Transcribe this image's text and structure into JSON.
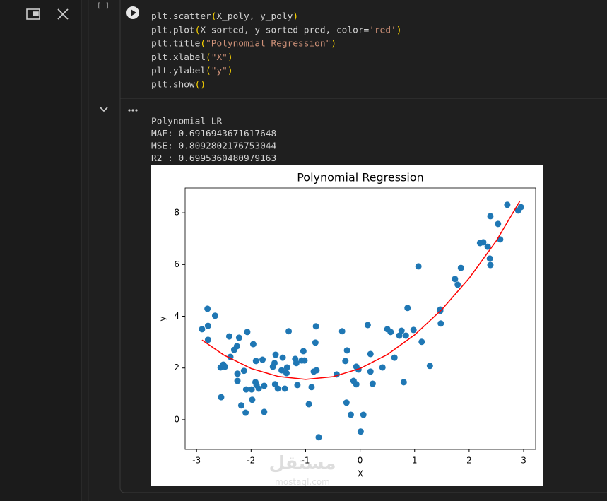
{
  "cell_marker": "[ ]",
  "code": [
    "plt.scatter(X_poly, y_poly)",
    "plt.plot(X_sorted, y_sorted_pred, color='red')",
    "plt.title(\"Polynomial Regression\")",
    "plt.xlabel(\"X\")",
    "plt.ylabel(\"y\")",
    "plt.show()"
  ],
  "output": [
    "Polynomial LR",
    "MAE: 0.6916943671617648",
    "MSE: 0.8092802176753044",
    "R2 : 0.6995360480979163"
  ],
  "watermark": [
    "مستقل",
    "mostaql.com"
  ],
  "chart_data": {
    "type": "scatter",
    "title": "Polynomial Regression",
    "xlabel": "X",
    "ylabel": "y",
    "xlim": [
      -3.21,
      3.22
    ],
    "ylim": [
      -1.15,
      8.96
    ],
    "xticks": [
      -3,
      -2,
      -1,
      0,
      1,
      2,
      3
    ],
    "yticks": [
      0,
      2,
      4,
      6,
      8
    ],
    "series": [
      {
        "type": "scatter",
        "color": "#1f77b4",
        "x": [
          -2.9,
          -2.8,
          -2.79,
          -2.79,
          -2.66,
          -2.56,
          -2.51,
          -2.48,
          -2.55,
          -2.4,
          -2.38,
          -2.31,
          -2.26,
          -2.25,
          -2.25,
          -2.22,
          -2.18,
          -2.13,
          -2.1,
          -2.07,
          -2.09,
          -1.99,
          -1.96,
          -1.98,
          -1.92,
          -1.91,
          -1.9,
          -1.86,
          -1.79,
          -1.76,
          -1.76,
          -1.6,
          -1.57,
          -1.56,
          -1.55,
          -1.51,
          -1.44,
          -1.42,
          -1.38,
          -1.35,
          -1.34,
          -1.31,
          -1.17,
          -1.19,
          -1.15,
          -1.07,
          -1.04,
          -1.02,
          -0.94,
          -0.89,
          -0.85,
          -0.82,
          -0.81,
          -0.8,
          -0.76,
          -0.43,
          -0.33,
          -0.27,
          -0.25,
          -0.24,
          -0.17,
          -0.12,
          -0.07,
          -0.07,
          -0.03,
          0.01,
          0.06,
          0.14,
          0.19,
          0.19,
          0.23,
          0.41,
          0.5,
          0.56,
          0.63,
          0.72,
          0.76,
          0.8,
          0.84,
          0.87,
          0.98,
          1.07,
          1.13,
          1.28,
          1.47,
          1.47,
          1.48,
          1.74,
          1.79,
          1.85,
          2.2,
          2.26,
          2.34,
          2.38,
          2.39,
          2.39,
          2.53,
          2.57,
          2.7,
          2.9,
          2.95
        ],
        "values": [
          3.5,
          4.29,
          3.63,
          3.09,
          4.02,
          2.02,
          2.13,
          2.05,
          0.87,
          3.22,
          2.43,
          2.7,
          2.84,
          1.78,
          1.5,
          3.17,
          0.55,
          1.89,
          0.27,
          3.39,
          1.17,
          1.17,
          2.92,
          0.77,
          1.45,
          2.27,
          1.34,
          1.2,
          2.32,
          1.31,
          0.3,
          2.05,
          2.19,
          1.37,
          2.51,
          1.2,
          1.91,
          2.4,
          1.2,
          1.8,
          2.02,
          3.42,
          2.19,
          2.35,
          1.34,
          2.29,
          2.65,
          2.29,
          0.6,
          1.26,
          1.86,
          2.98,
          3.61,
          1.91,
          -0.68,
          1.75,
          3.42,
          2.27,
          0.66,
          2.68,
          0.19,
          1.5,
          2.05,
          1.37,
          1.94,
          -0.46,
          0.19,
          3.66,
          1.86,
          2.54,
          1.39,
          2.02,
          3.5,
          3.39,
          2.4,
          3.25,
          3.44,
          1.45,
          3.25,
          4.32,
          3.47,
          5.93,
          3.01,
          2.08,
          4.26,
          4.21,
          3.72,
          5.44,
          5.22,
          5.87,
          6.83,
          6.86,
          6.69,
          6.23,
          5.98,
          7.87,
          7.57,
          6.97,
          8.31,
          8.09,
          8.22
        ]
      },
      {
        "type": "line",
        "color": "red",
        "x": [
          -2.9,
          -2.5,
          -2,
          -1.5,
          -1,
          -0.5,
          0,
          0.5,
          1,
          1.5,
          2,
          2.5,
          2.93
        ],
        "values": [
          3.08,
          2.5,
          1.98,
          1.67,
          1.56,
          1.66,
          1.98,
          2.52,
          3.28,
          4.26,
          5.47,
          6.92,
          8.45
        ]
      }
    ]
  }
}
